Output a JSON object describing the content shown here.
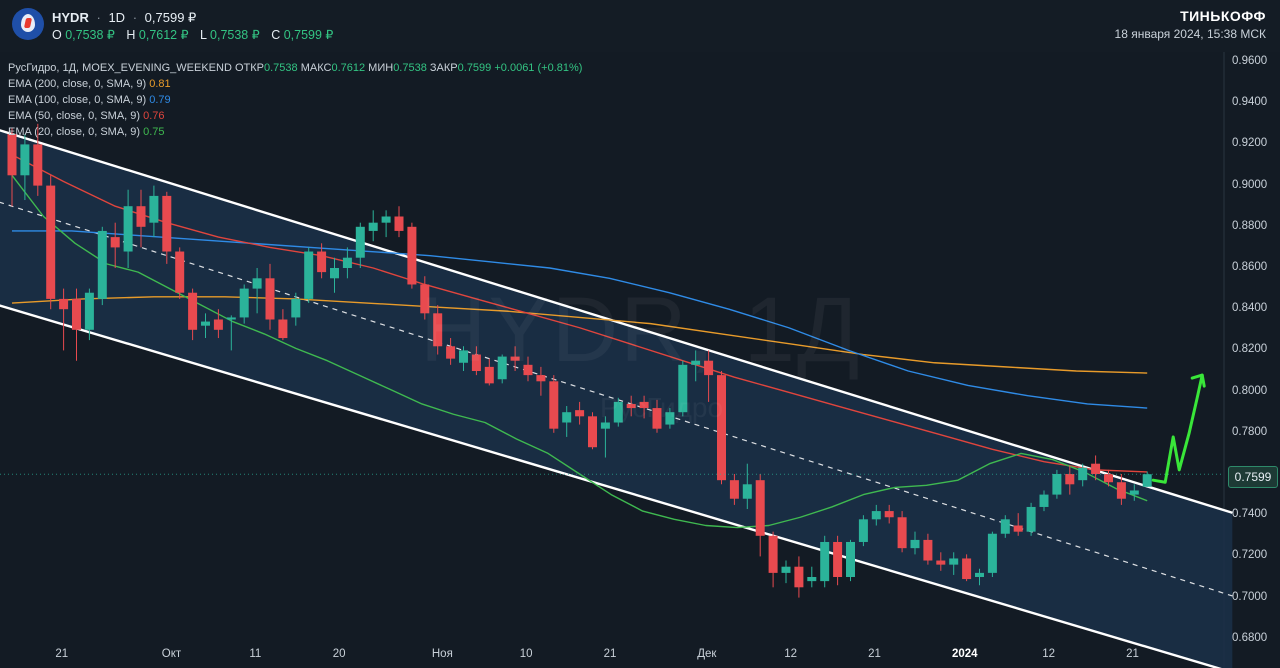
{
  "header": {
    "ticker": "HYDR",
    "interval": "1D",
    "last_price": "0,7599 ₽",
    "ohlc": [
      {
        "label": "O",
        "value": "0,7538 ₽"
      },
      {
        "label": "H",
        "value": "0,7612 ₽"
      },
      {
        "label": "L",
        "value": "0,7538 ₽"
      },
      {
        "label": "C",
        "value": "0,7599 ₽"
      }
    ],
    "brand": "ТИНЬКОФФ",
    "datetime": "18 января 2024, 15:38 МСК"
  },
  "legend": {
    "line1": {
      "prefix": "РусГидро, 1Д, MOEX_EVENING_WEEKEND",
      "open_label": "ОТКР",
      "open_value": "0.7538",
      "high_label": "МАКС",
      "high_value": "0.7612",
      "low_label": "МИН",
      "low_value": "0.7538",
      "close_label": "ЗАКР",
      "close_value": "0.7599",
      "change": "+0.0061 (+0.81%)"
    },
    "indicators": [
      {
        "label": "EMA (200, close, 0, SMA, 9)",
        "value": "0.81",
        "color": "#e89b2a"
      },
      {
        "label": "EMA (100, close, 0, SMA, 9)",
        "value": "0.79",
        "color": "#2f8be6"
      },
      {
        "label": "EMA (50, close, 0, SMA, 9)",
        "value": "0.76",
        "color": "#e0453d"
      },
      {
        "label": "EMA (20, close, 0, SMA, 9)",
        "value": "0.75",
        "color": "#3fb950"
      }
    ]
  },
  "watermark": {
    "main": "HYDR, 1Д",
    "sub": "РусГидро"
  },
  "price_tag": "0.7599",
  "colors": {
    "up": "#2bb39a",
    "down": "#e84a4f",
    "background": "#131b24",
    "channel_fill": "#1b3049"
  },
  "chart_data": {
    "type": "candlestick",
    "ylim": [
      0.68,
      0.965
    ],
    "y_ticks": [
      "0.9600",
      "0.9400",
      "0.9200",
      "0.9000",
      "0.8800",
      "0.8600",
      "0.8400",
      "0.8200",
      "0.8000",
      "0.7800",
      "0.7600",
      "0.7400",
      "0.7200",
      "0.7000",
      "0.6800"
    ],
    "x_ticks": [
      "21",
      "Окт",
      "11",
      "20",
      "Ноя",
      "10",
      "21",
      "Дек",
      "12",
      "21",
      "2024",
      "12",
      "21"
    ],
    "candles": [
      [
        0.925,
        0.928,
        0.89,
        0.905
      ],
      [
        0.905,
        0.925,
        0.893,
        0.92
      ],
      [
        0.92,
        0.93,
        0.895,
        0.9
      ],
      [
        0.9,
        0.905,
        0.84,
        0.845
      ],
      [
        0.845,
        0.85,
        0.82,
        0.84
      ],
      [
        0.845,
        0.85,
        0.815,
        0.83
      ],
      [
        0.83,
        0.85,
        0.825,
        0.848
      ],
      [
        0.845,
        0.88,
        0.842,
        0.878
      ],
      [
        0.875,
        0.882,
        0.86,
        0.87
      ],
      [
        0.868,
        0.898,
        0.86,
        0.89
      ],
      [
        0.89,
        0.898,
        0.87,
        0.88
      ],
      [
        0.882,
        0.9,
        0.875,
        0.895
      ],
      [
        0.895,
        0.897,
        0.862,
        0.868
      ],
      [
        0.868,
        0.87,
        0.845,
        0.848
      ],
      [
        0.848,
        0.85,
        0.825,
        0.83
      ],
      [
        0.832,
        0.838,
        0.826,
        0.834
      ],
      [
        0.835,
        0.84,
        0.826,
        0.83
      ],
      [
        0.835,
        0.837,
        0.82,
        0.836
      ],
      [
        0.836,
        0.852,
        0.833,
        0.85
      ],
      [
        0.85,
        0.86,
        0.838,
        0.855
      ],
      [
        0.855,
        0.862,
        0.83,
        0.835
      ],
      [
        0.835,
        0.84,
        0.825,
        0.826
      ],
      [
        0.836,
        0.848,
        0.832,
        0.845
      ],
      [
        0.845,
        0.87,
        0.843,
        0.868
      ],
      [
        0.868,
        0.872,
        0.855,
        0.858
      ],
      [
        0.855,
        0.865,
        0.848,
        0.86
      ],
      [
        0.86,
        0.87,
        0.855,
        0.865
      ],
      [
        0.865,
        0.882,
        0.86,
        0.88
      ],
      [
        0.878,
        0.888,
        0.873,
        0.882
      ],
      [
        0.882,
        0.888,
        0.875,
        0.885
      ],
      [
        0.885,
        0.89,
        0.875,
        0.878
      ],
      [
        0.88,
        0.882,
        0.85,
        0.852
      ],
      [
        0.852,
        0.856,
        0.835,
        0.838
      ],
      [
        0.838,
        0.842,
        0.818,
        0.822
      ],
      [
        0.822,
        0.826,
        0.813,
        0.816
      ],
      [
        0.814,
        0.822,
        0.81,
        0.82
      ],
      [
        0.818,
        0.822,
        0.808,
        0.81
      ],
      [
        0.812,
        0.816,
        0.803,
        0.804
      ],
      [
        0.806,
        0.818,
        0.804,
        0.817
      ],
      [
        0.817,
        0.822,
        0.81,
        0.815
      ],
      [
        0.813,
        0.817,
        0.805,
        0.808
      ],
      [
        0.808,
        0.812,
        0.798,
        0.805
      ],
      [
        0.805,
        0.808,
        0.78,
        0.782
      ],
      [
        0.785,
        0.793,
        0.778,
        0.79
      ],
      [
        0.791,
        0.795,
        0.784,
        0.788
      ],
      [
        0.788,
        0.79,
        0.772,
        0.773
      ],
      [
        0.782,
        0.788,
        0.768,
        0.785
      ],
      [
        0.785,
        0.797,
        0.783,
        0.795
      ],
      [
        0.794,
        0.798,
        0.788,
        0.792
      ],
      [
        0.795,
        0.798,
        0.787,
        0.792
      ],
      [
        0.792,
        0.796,
        0.78,
        0.782
      ],
      [
        0.784,
        0.792,
        0.782,
        0.79
      ],
      [
        0.79,
        0.815,
        0.788,
        0.813
      ],
      [
        0.813,
        0.82,
        0.805,
        0.815
      ],
      [
        0.815,
        0.82,
        0.795,
        0.808
      ],
      [
        0.808,
        0.81,
        0.755,
        0.757
      ],
      [
        0.757,
        0.76,
        0.745,
        0.748
      ],
      [
        0.748,
        0.765,
        0.743,
        0.755
      ],
      [
        0.757,
        0.76,
        0.72,
        0.73
      ],
      [
        0.73,
        0.732,
        0.705,
        0.712
      ],
      [
        0.712,
        0.718,
        0.707,
        0.715
      ],
      [
        0.715,
        0.72,
        0.7,
        0.705
      ],
      [
        0.708,
        0.715,
        0.705,
        0.71
      ],
      [
        0.708,
        0.73,
        0.705,
        0.727
      ],
      [
        0.727,
        0.73,
        0.706,
        0.71
      ],
      [
        0.71,
        0.728,
        0.708,
        0.727
      ],
      [
        0.727,
        0.74,
        0.725,
        0.738
      ],
      [
        0.738,
        0.745,
        0.735,
        0.742
      ],
      [
        0.742,
        0.745,
        0.736,
        0.739
      ],
      [
        0.739,
        0.742,
        0.722,
        0.724
      ],
      [
        0.724,
        0.732,
        0.721,
        0.728
      ],
      [
        0.728,
        0.731,
        0.716,
        0.718
      ],
      [
        0.718,
        0.722,
        0.713,
        0.716
      ],
      [
        0.716,
        0.722,
        0.711,
        0.719
      ],
      [
        0.719,
        0.721,
        0.708,
        0.709
      ],
      [
        0.71,
        0.714,
        0.706,
        0.712
      ],
      [
        0.712,
        0.732,
        0.71,
        0.731
      ],
      [
        0.731,
        0.74,
        0.729,
        0.738
      ],
      [
        0.735,
        0.741,
        0.73,
        0.732
      ],
      [
        0.732,
        0.746,
        0.73,
        0.744
      ],
      [
        0.744,
        0.752,
        0.742,
        0.75
      ],
      [
        0.75,
        0.762,
        0.748,
        0.76
      ],
      [
        0.76,
        0.764,
        0.75,
        0.755
      ],
      [
        0.757,
        0.765,
        0.754,
        0.763
      ],
      [
        0.765,
        0.769,
        0.757,
        0.76
      ],
      [
        0.76,
        0.762,
        0.754,
        0.756
      ],
      [
        0.756,
        0.76,
        0.745,
        0.748
      ],
      [
        0.75,
        0.755,
        0.747,
        0.752
      ],
      [
        0.7538,
        0.7612,
        0.7538,
        0.7599
      ]
    ],
    "ema20": [
      0.905,
      0.885,
      0.872,
      0.862,
      0.858,
      0.85,
      0.842,
      0.834,
      0.828,
      0.821,
      0.815,
      0.808,
      0.801,
      0.794,
      0.789,
      0.785,
      0.777,
      0.77,
      0.76,
      0.75,
      0.742,
      0.738,
      0.735,
      0.734,
      0.735,
      0.739,
      0.744,
      0.75,
      0.7535,
      0.7545,
      0.757,
      0.765,
      0.77,
      0.767,
      0.761,
      0.753,
      0.747
    ],
    "ema50": [
      0.915,
      0.902,
      0.89,
      0.882,
      0.875,
      0.87,
      0.866,
      0.86,
      0.852,
      0.845,
      0.838,
      0.831,
      0.823,
      0.815,
      0.807,
      0.8,
      0.793,
      0.786,
      0.779,
      0.772,
      0.766,
      0.762,
      0.761
    ],
    "ema100": [
      0.878,
      0.878,
      0.876,
      0.874,
      0.872,
      0.87,
      0.868,
      0.866,
      0.863,
      0.86,
      0.855,
      0.848,
      0.84,
      0.831,
      0.82,
      0.81,
      0.803,
      0.798,
      0.794,
      0.792
    ],
    "ema200": [
      0.843,
      0.845,
      0.846,
      0.846,
      0.845,
      0.843,
      0.841,
      0.839,
      0.836,
      0.833,
      0.828,
      0.823,
      0.818,
      0.814,
      0.812,
      0.81,
      0.809
    ],
    "channel": {
      "upper": [
        [
          0,
          0.925
        ],
        [
          88,
          0.754
        ]
      ],
      "lower": [
        [
          0,
          0.84
        ],
        [
          88,
          0.676
        ]
      ],
      "mid": [
        [
          0,
          0.89
        ],
        [
          88,
          0.714
        ]
      ]
    }
  }
}
